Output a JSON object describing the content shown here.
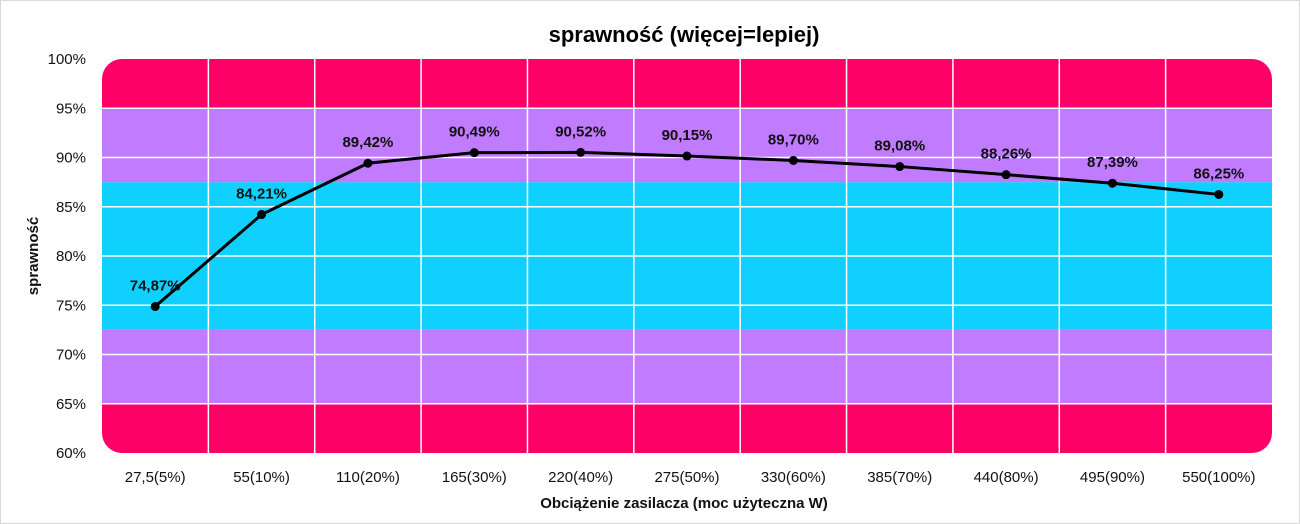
{
  "chart_data": {
    "type": "line",
    "title": "sprawność (więcej=lepiej)",
    "xlabel": "Obciążenie zasilacza (moc użyteczna W)",
    "ylabel": "sprawność",
    "categories": [
      "27,5(5%)",
      "55(10%)",
      "110(20%)",
      "165(30%)",
      "220(40%)",
      "275(50%)",
      "330(60%)",
      "385(70%)",
      "440(80%)",
      "495(90%)",
      "550(100%)"
    ],
    "series": [
      {
        "values": [
          74.87,
          84.21,
          89.42,
          90.49,
          90.52,
          90.15,
          89.7,
          89.08,
          88.26,
          87.39,
          86.25
        ],
        "labels": [
          "74,87%",
          "84,21%",
          "89,42%",
          "90,49%",
          "90,52%",
          "90,15%",
          "89,70%",
          "89,08%",
          "88,26%",
          "87,39%",
          "86,25%"
        ],
        "color": "#000000"
      }
    ],
    "ylim": [
      60,
      100
    ],
    "yticks": [
      60,
      65,
      70,
      75,
      80,
      85,
      90,
      95,
      100
    ],
    "ytick_labels": [
      "60%",
      "65%",
      "70%",
      "75%",
      "80%",
      "85%",
      "90%",
      "95%",
      "100%"
    ],
    "grid": true,
    "bands": [
      {
        "from": 60,
        "to": 65,
        "color": "#ff0066"
      },
      {
        "from": 65,
        "to": 72.5,
        "color": "#c17bff"
      },
      {
        "from": 72.5,
        "to": 87.5,
        "color": "#10d0ff"
      },
      {
        "from": 87.5,
        "to": 95,
        "color": "#c17bff"
      },
      {
        "from": 95,
        "to": 100,
        "color": "#ff0066"
      }
    ]
  }
}
